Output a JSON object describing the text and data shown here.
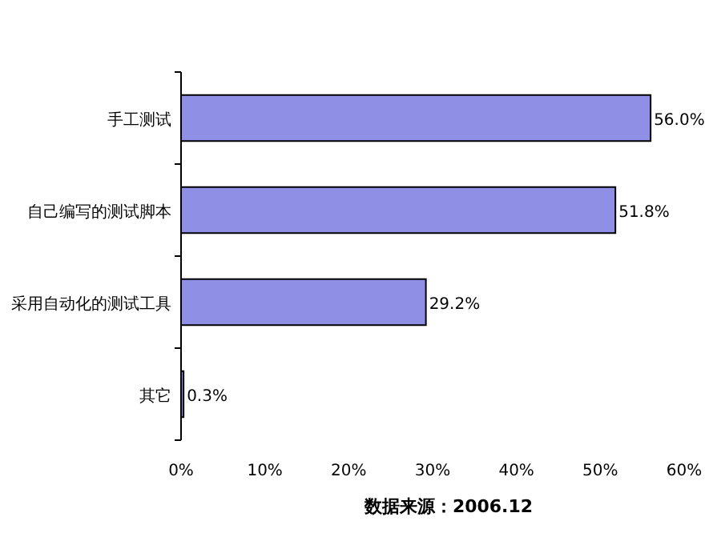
{
  "chart_data": {
    "type": "bar",
    "orientation": "horizontal",
    "categories": [
      "手工测试",
      "自己编写的测试脚本",
      "采用自动化的测试工具",
      "其它"
    ],
    "values": [
      56.0,
      51.8,
      29.2,
      0.3
    ],
    "value_labels": [
      "56.0%",
      "51.8%",
      "29.2%",
      "0.3%"
    ],
    "color": "#8f8fe6",
    "xlim": [
      0,
      60
    ],
    "xticks": [
      {
        "value": 0,
        "label": "0%"
      },
      {
        "value": 10,
        "label": "10%"
      },
      {
        "value": 20,
        "label": "20%"
      },
      {
        "value": 30,
        "label": "30%"
      },
      {
        "value": 40,
        "label": "40%"
      },
      {
        "value": 50,
        "label": "50%"
      },
      {
        "value": 60,
        "label": "60%"
      }
    ],
    "annotations": [
      "数据来源：2006.12"
    ]
  }
}
